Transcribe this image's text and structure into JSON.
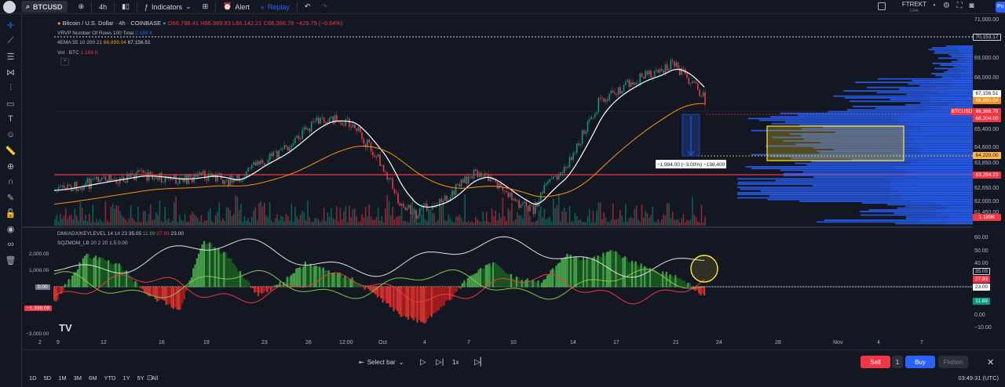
{
  "topbar": {
    "symbol": "BTCUSD",
    "interval": "4h",
    "indicators_label": "Indicators",
    "alert_label": "Alert",
    "replay_label": "Replay",
    "account_name": "FTREKT",
    "account_sub": "Live",
    "publish_label": "Pu"
  },
  "legend": {
    "title": "Bitcoin / U.S. Dollar · 4h · COINBASE",
    "ohlc": "O66,798.41 H66,989.83 L66,142.21 C66,366.78 −429.79 (−0.64%)",
    "vrvp": "VRVP Number Of Rows 100 Total",
    "vrvp_value": "2.199 K",
    "ema_label": "4EMA 55 10 200 21",
    "ema_v1": "66,899.04",
    "ema_v2": "67,156.51",
    "vol_label": "Vol · BTC",
    "vol_value": "1.189 K",
    "dmi_label": "DMI/ADX/KEYLEVEL 14 14 23",
    "dmi_v1": "35.05",
    "dmi_v2": "11.89",
    "dmi_v3": "27.93",
    "dmi_v4": "23.00",
    "sqz_label": "SQZMOM_LB 20 2 20 1.5",
    "sqz_v1": "−1,338.09",
    "sqz_v2": "0.00"
  },
  "price_axis": {
    "labels": [
      "71,000.00",
      "69,000.00",
      "68,000.00",
      "65,400.00",
      "64,600.00",
      "63,850.00",
      "62,650.00",
      "62,000.00",
      "61,450.00"
    ],
    "tags": {
      "top": "70,153.17",
      "ema_long": "67,156.51",
      "ema_short": "66,899.04",
      "symbol": "BTCUSD",
      "last": "66,366.78",
      "countdown": "66,204.00",
      "yellow": "64,220.00",
      "red_line": "63,294.23",
      "volume": "1.189K"
    }
  },
  "osc_axis": {
    "labels": [
      "60.00",
      "50.00",
      "40.00",
      "10.00",
      "0.00",
      "−10.00"
    ],
    "tags": {
      "v1": "35.05",
      "v2": "27.93",
      "v3": "23.00",
      "v4": "11.89"
    },
    "left_labels": [
      "2,000.00",
      "1,000.00",
      "0.00",
      "−1,338.09",
      "−3,000.00"
    ]
  },
  "measure": {
    "text": "−1,984.00 (−3.00%) −198,400"
  },
  "time_axis": [
    "2",
    "9",
    "12",
    "16",
    "19",
    "23",
    "26",
    "12:00",
    "Oct",
    "4",
    "7",
    "10",
    "14",
    "17",
    "21",
    "24",
    "28",
    "Nov",
    "4",
    "7"
  ],
  "bottom": {
    "select_bar": "Select bar",
    "speed": "1x",
    "sell": "Sell",
    "qty": "1",
    "buy": "Buy",
    "flatten": "Flatten",
    "ranges": [
      "1D",
      "5D",
      "1M",
      "3M",
      "6M",
      "YTD",
      "1Y",
      "5Y",
      "All"
    ],
    "time": "03:49:31 (UTC)"
  }
}
